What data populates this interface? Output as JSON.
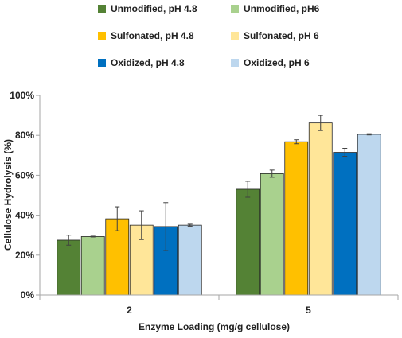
{
  "chart_data": {
    "type": "bar",
    "categories": [
      "2",
      "5"
    ],
    "xlabel": "Enzyme Loading (mg/g cellulose)",
    "ylabel": "Cellulose Hydrolysis (%)",
    "ylim": [
      0,
      100
    ],
    "yticks": [
      0,
      20,
      40,
      60,
      80,
      100
    ],
    "ytick_labels": [
      "0%",
      "20%",
      "40%",
      "60%",
      "80%",
      "100%"
    ],
    "grid": false,
    "legend_position": "top",
    "series": [
      {
        "name": "Unmodified, pH 4.8",
        "color": "#548235",
        "values": [
          27.5,
          53.0
        ],
        "errors": [
          2.5,
          4.0
        ]
      },
      {
        "name": "Unmodified, pH6",
        "color": "#a9d18e",
        "values": [
          29.3,
          60.8
        ],
        "errors": [
          0.2,
          1.8
        ]
      },
      {
        "name": "Sulfonated, pH 4.8",
        "color": "#ffc000",
        "values": [
          38.2,
          76.8
        ],
        "errors": [
          6.0,
          1.0
        ]
      },
      {
        "name": "Sulfonated, pH 6",
        "color": "#ffe699",
        "values": [
          35.0,
          86.2
        ],
        "errors": [
          7.2,
          3.8
        ]
      },
      {
        "name": "Oxidized, pH 4.8",
        "color": "#0070c0",
        "values": [
          34.3,
          71.5
        ],
        "errors": [
          12.0,
          2.0
        ]
      },
      {
        "name": "Oxidized, pH 6",
        "color": "#bdd7ee",
        "values": [
          35.0,
          80.5
        ],
        "errors": [
          0.5,
          0.3
        ]
      }
    ]
  }
}
